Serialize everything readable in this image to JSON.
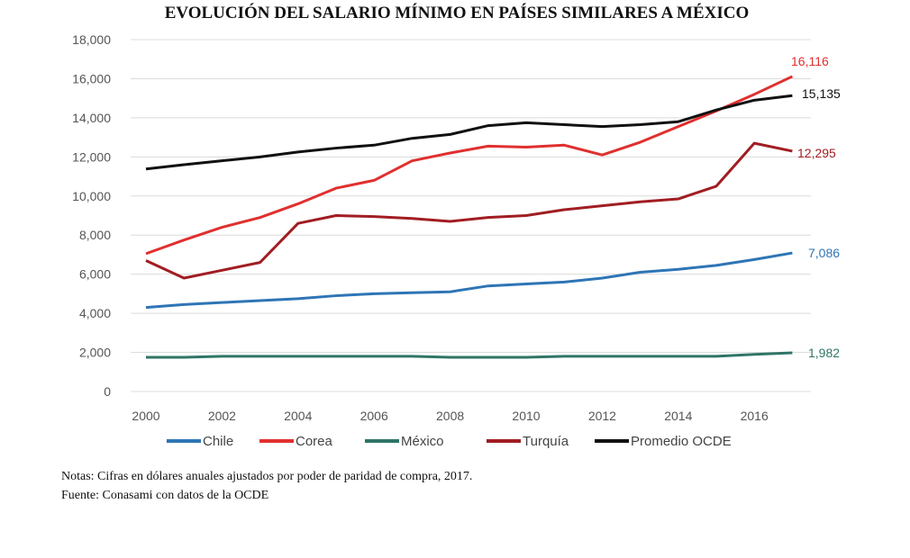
{
  "chart_data": {
    "type": "line",
    "title": "EVOLUCIÓN DEL SALARIO MÍNIMO EN PAÍSES SIMILARES A MÉXICO",
    "xlabel": "",
    "ylabel": "",
    "ylim": [
      0,
      18000
    ],
    "yticks": [
      "0",
      "2,000",
      "4,000",
      "6,000",
      "8,000",
      "10,000",
      "12,000",
      "14,000",
      "16,000",
      "18,000"
    ],
    "xtick_labels": [
      "2000",
      "2002",
      "2004",
      "2006",
      "2008",
      "2010",
      "2012",
      "2014",
      "2016"
    ],
    "x": [
      2000,
      2001,
      2002,
      2003,
      2004,
      2005,
      2006,
      2007,
      2008,
      2009,
      2010,
      2011,
      2012,
      2013,
      2014,
      2015,
      2016,
      2017
    ],
    "grid": "horizontal",
    "legend_position": "bottom",
    "series": [
      {
        "name": "Chile",
        "color": "#2e75b6",
        "end_label": "7,086",
        "values": [
          4300,
          4450,
          4550,
          4650,
          4750,
          4900,
          5000,
          5050,
          5100,
          5400,
          5500,
          5600,
          5800,
          6100,
          6250,
          6450,
          6750,
          7086
        ]
      },
      {
        "name": "Corea",
        "color": "#e0302f",
        "end_label": "16,116",
        "values": [
          7050,
          7750,
          8400,
          8900,
          9600,
          10400,
          10800,
          11800,
          12200,
          12550,
          12500,
          12600,
          12100,
          12750,
          13550,
          14350,
          15200,
          16116
        ]
      },
      {
        "name": "México",
        "color": "#2f7566",
        "end_label": "1,982",
        "values": [
          1750,
          1750,
          1800,
          1800,
          1800,
          1800,
          1800,
          1800,
          1750,
          1750,
          1750,
          1800,
          1800,
          1800,
          1800,
          1800,
          1900,
          1982
        ]
      },
      {
        "name": "Turquía",
        "color": "#a11d22",
        "end_label": "12,295",
        "values": [
          6700,
          5800,
          6200,
          6600,
          8600,
          9000,
          8950,
          8850,
          8700,
          8900,
          9000,
          9300,
          9500,
          9700,
          9850,
          10500,
          12700,
          12295
        ]
      },
      {
        "name": "Promedio OCDE",
        "color": "#111111",
        "end_label": "15,135",
        "values": [
          11380,
          11600,
          11800,
          12000,
          12250,
          12450,
          12600,
          12950,
          13150,
          13600,
          13750,
          13650,
          13550,
          13650,
          13800,
          14400,
          14900,
          15135
        ]
      }
    ]
  },
  "notes": {
    "nota": "Notas: Cifras en dólares anuales ajustados por poder de paridad de compra, 2017.",
    "fuente": "Fuente: Conasami con datos de la OCDE"
  }
}
